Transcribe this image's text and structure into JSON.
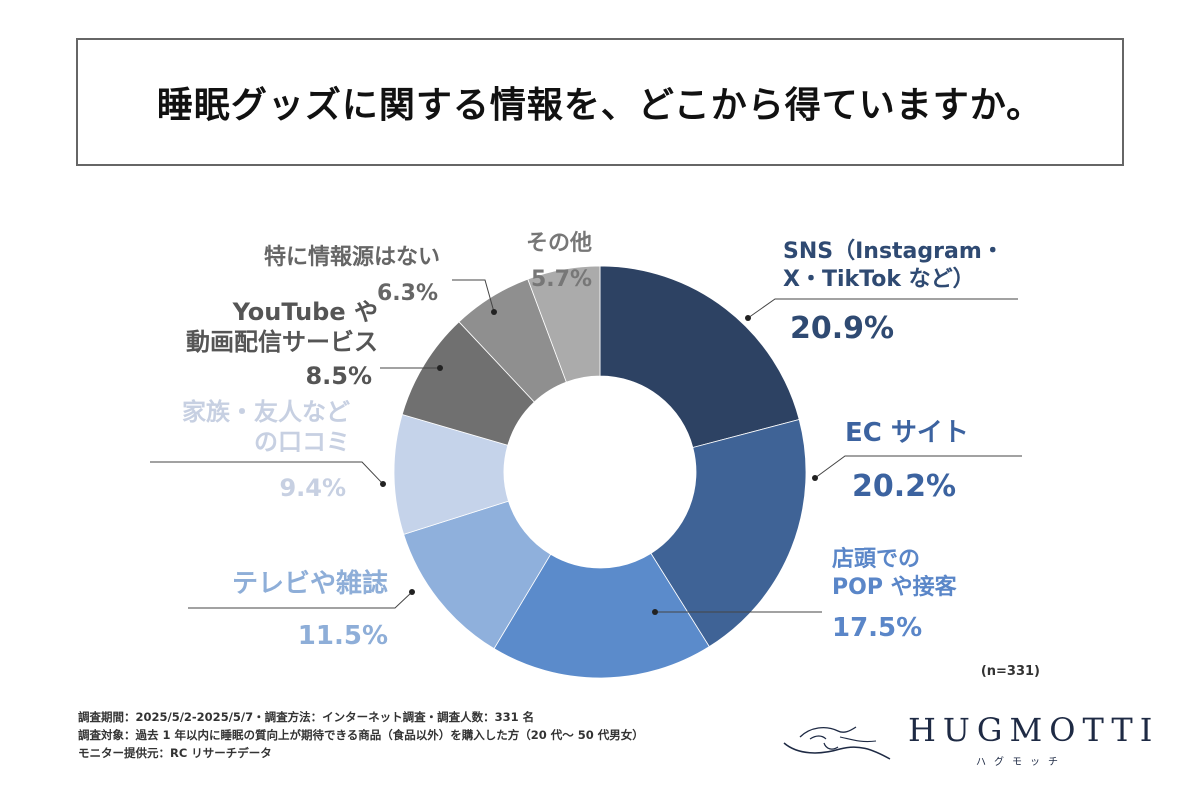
{
  "title": "睡眠グッズに関する情報を、どこから得ていますか。",
  "chart_data": {
    "type": "pie",
    "variant": "donut",
    "sample_note": "(n=331)",
    "slices": [
      {
        "label_lines": [
          "SNS（Instagram・",
          "X・TikTok など）"
        ],
        "value": 20.9,
        "value_text": "20.9%",
        "color": "#2d4263",
        "text_color": "#2f4a72"
      },
      {
        "label_lines": [
          "EC サイト"
        ],
        "value": 20.2,
        "value_text": "20.2%",
        "color": "#3f6396",
        "text_color": "#3c63a0"
      },
      {
        "label_lines": [
          "店頭での",
          "POP や接客"
        ],
        "value": 17.5,
        "value_text": "17.5%",
        "color": "#5b8bcb",
        "text_color": "#5a86c8"
      },
      {
        "label_lines": [
          "テレビや雑誌"
        ],
        "value": 11.5,
        "value_text": "11.5%",
        "color": "#8fb0dc",
        "text_color": "#8eaed8"
      },
      {
        "label_lines": [
          "家族・友人など",
          "の口コミ"
        ],
        "value": 9.4,
        "value_text": "9.4%",
        "color": "#c5d3ea",
        "text_color": "#c7d0e2"
      },
      {
        "label_lines": [
          "YouTube や",
          "動画配信サービス"
        ],
        "value": 8.5,
        "value_text": "8.5%",
        "color": "#707070",
        "text_color": "#555555"
      },
      {
        "label_lines": [
          "特に情報源はない"
        ],
        "value": 6.3,
        "value_text": "6.3%",
        "color": "#8f8f8f",
        "text_color": "#666666"
      },
      {
        "label_lines": [
          "その他"
        ],
        "value": 5.7,
        "value_text": "5.7%",
        "color": "#ababab",
        "text_color": "#777777"
      }
    ]
  },
  "footer": {
    "line1": "調査期間：2025/5/2-2025/5/7・調査方法：インターネット調査・調査人数：331 名",
    "line2": "調査対象：過去 1 年以内に睡眠の質向上が期待できる商品（食品以外）を購入した方（20 代～ 50 代男女）",
    "line3": "モニター提供元：RC リサーチデータ"
  },
  "logo": {
    "wordmark": "HUGMOTTI",
    "kana": "ハグモッチ"
  }
}
